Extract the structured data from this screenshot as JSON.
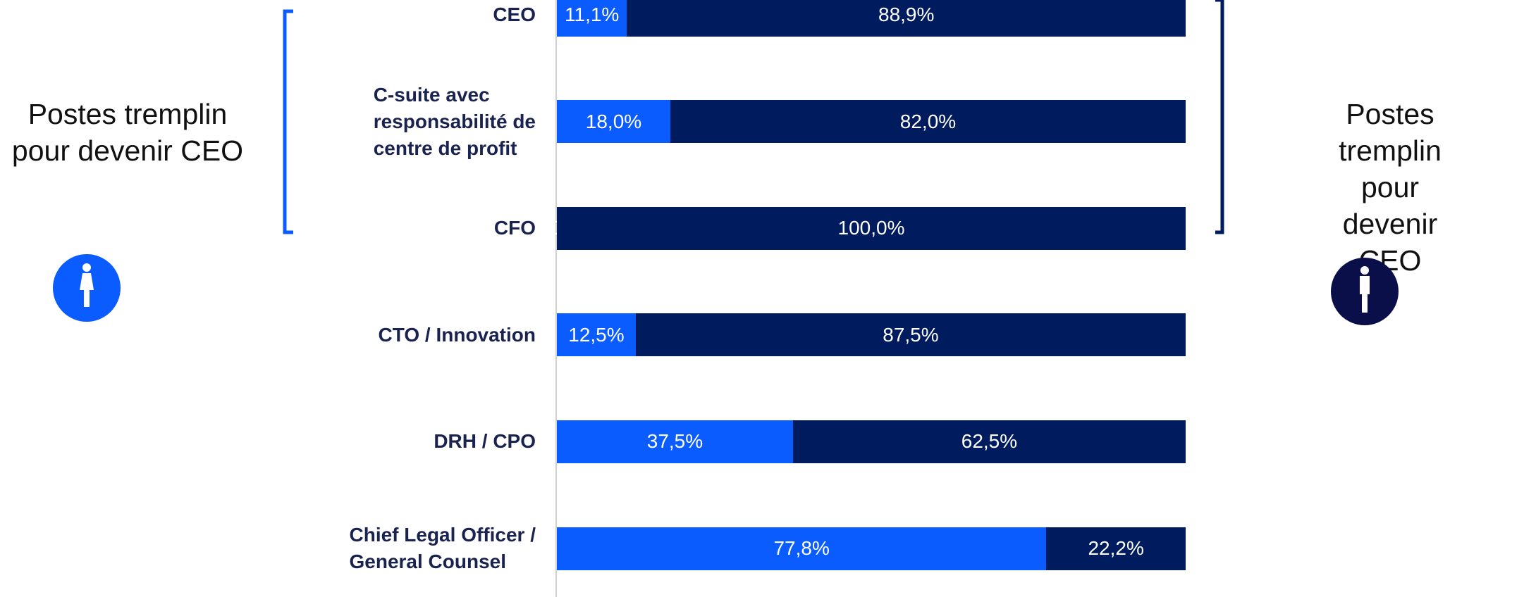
{
  "chart_data": {
    "type": "stacked-bar-horizontal",
    "categories": [
      "CEO",
      "C-suite avec\nresponsabilité de\ncentre de profit",
      "CFO",
      "CTO / Innovation",
      "DRH / CPO",
      "Chief Legal Officer /\nGeneral Counsel"
    ],
    "series": [
      {
        "color": "#0a5cff",
        "values": [
          11.1,
          18.0,
          0.0,
          12.5,
          37.5,
          77.8
        ],
        "value_labels": [
          "11,1%",
          "18,0%",
          "0,0%",
          "12,5%",
          "37,5%",
          "77,8%"
        ]
      },
      {
        "color": "#001c5e",
        "values": [
          88.9,
          82.0,
          100.0,
          87.5,
          62.5,
          22.2
        ],
        "value_labels": [
          "88,9%",
          "82,0%",
          "100,0%",
          "87,5%",
          "62,5%",
          "22,2%"
        ]
      }
    ],
    "xlim": [
      0,
      100
    ],
    "annotations": [
      "Postes tremplin\npour devenir CEO",
      "Postes tremplin\npour devenir CEO"
    ]
  }
}
